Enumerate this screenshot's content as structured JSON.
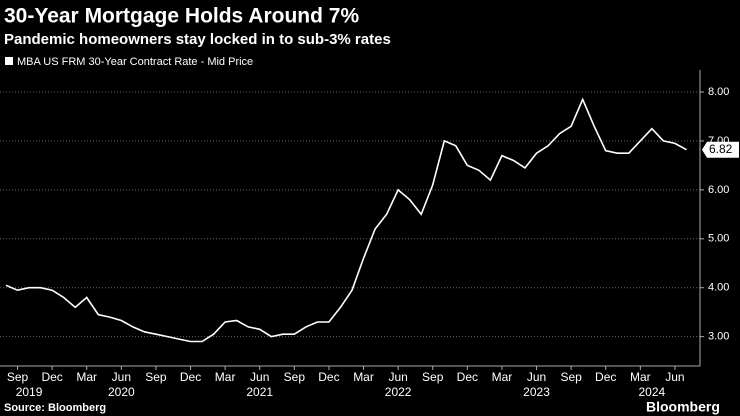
{
  "chart_data": {
    "type": "line",
    "title": "30-Year Mortgage Holds Around 7%",
    "subtitle": "Pandemic homeowners stay locked in to sub-3% rates",
    "source": "Source: Bloomberg",
    "brand": "Bloomberg",
    "x": [
      "2019-08",
      "2019-09",
      "2019-10",
      "2019-11",
      "2019-12",
      "2020-01",
      "2020-02",
      "2020-03",
      "2020-04",
      "2020-05",
      "2020-06",
      "2020-07",
      "2020-08",
      "2020-09",
      "2020-10",
      "2020-11",
      "2020-12",
      "2021-01",
      "2021-02",
      "2021-03",
      "2021-04",
      "2021-05",
      "2021-06",
      "2021-07",
      "2021-08",
      "2021-09",
      "2021-10",
      "2021-11",
      "2021-12",
      "2022-01",
      "2022-02",
      "2022-03",
      "2022-04",
      "2022-05",
      "2022-06",
      "2022-07",
      "2022-08",
      "2022-09",
      "2022-10",
      "2022-11",
      "2022-12",
      "2023-01",
      "2023-02",
      "2023-03",
      "2023-04",
      "2023-05",
      "2023-06",
      "2023-07",
      "2023-08",
      "2023-09",
      "2023-10",
      "2023-11",
      "2023-12",
      "2024-01",
      "2024-02",
      "2024-03",
      "2024-04",
      "2024-05",
      "2024-06",
      "2024-07"
    ],
    "series": [
      {
        "name": "MBA US FRM 30-Year Contract Rate - Mid Price",
        "color": "#ffffff",
        "values": [
          4.05,
          3.95,
          4.0,
          4.0,
          3.95,
          3.8,
          3.6,
          3.8,
          3.45,
          3.4,
          3.33,
          3.2,
          3.1,
          3.05,
          3.0,
          2.95,
          2.9,
          2.9,
          3.05,
          3.3,
          3.33,
          3.2,
          3.15,
          3.0,
          3.05,
          3.05,
          3.2,
          3.3,
          3.3,
          3.6,
          3.95,
          4.6,
          5.2,
          5.5,
          6.0,
          5.8,
          5.5,
          6.1,
          7.0,
          6.9,
          6.5,
          6.4,
          6.2,
          6.7,
          6.6,
          6.45,
          6.75,
          6.9,
          7.15,
          7.3,
          7.85,
          7.3,
          6.8,
          6.75,
          6.75,
          7.0,
          7.25,
          7.0,
          6.95,
          6.82
        ]
      }
    ],
    "xlim": [
      "2019-08",
      "2024-08"
    ],
    "xticks": [
      {
        "value": "2019-09",
        "label": "Sep"
      },
      {
        "value": "2019-12",
        "label": "Dec"
      },
      {
        "value": "2020-03",
        "label": "Mar"
      },
      {
        "value": "2020-06",
        "label": "Jun"
      },
      {
        "value": "2020-09",
        "label": "Sep"
      },
      {
        "value": "2020-12",
        "label": "Dec"
      },
      {
        "value": "2021-03",
        "label": "Mar"
      },
      {
        "value": "2021-06",
        "label": "Jun"
      },
      {
        "value": "2021-09",
        "label": "Sep"
      },
      {
        "value": "2021-12",
        "label": "Dec"
      },
      {
        "value": "2022-03",
        "label": "Mar"
      },
      {
        "value": "2022-06",
        "label": "Jun"
      },
      {
        "value": "2022-09",
        "label": "Sep"
      },
      {
        "value": "2022-12",
        "label": "Dec"
      },
      {
        "value": "2023-03",
        "label": "Mar"
      },
      {
        "value": "2023-06",
        "label": "Jun"
      },
      {
        "value": "2023-09",
        "label": "Sep"
      },
      {
        "value": "2023-12",
        "label": "Dec"
      },
      {
        "value": "2024-03",
        "label": "Mar"
      },
      {
        "value": "2024-06",
        "label": "Jun"
      }
    ],
    "year_labels": [
      {
        "value": "2019-10",
        "label": "2019"
      },
      {
        "value": "2020-06",
        "label": "2020"
      },
      {
        "value": "2021-06",
        "label": "2021"
      },
      {
        "value": "2022-06",
        "label": "2022"
      },
      {
        "value": "2023-06",
        "label": "2023"
      },
      {
        "value": "2024-04",
        "label": "2024"
      }
    ],
    "ylim": [
      2.4,
      8.45
    ],
    "yticks": [
      {
        "value": 3,
        "label": "3.00"
      },
      {
        "value": 4,
        "label": "4.00"
      },
      {
        "value": 5,
        "label": "5.00"
      },
      {
        "value": 6,
        "label": "6.00"
      },
      {
        "value": 7,
        "label": "7.00"
      },
      {
        "value": 8,
        "label": "8.00"
      }
    ],
    "grid": true
  }
}
